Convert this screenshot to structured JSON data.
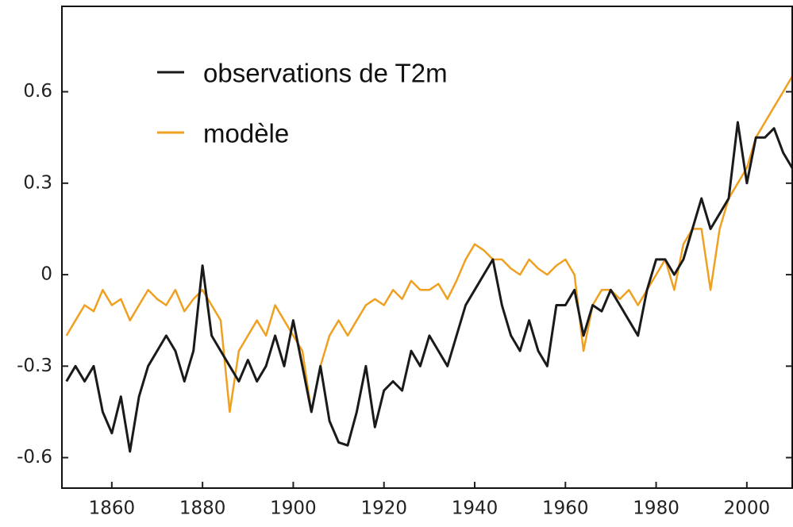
{
  "chart_data": {
    "type": "line",
    "x": [
      1850,
      1852,
      1854,
      1856,
      1858,
      1860,
      1862,
      1864,
      1866,
      1868,
      1870,
      1872,
      1874,
      1876,
      1878,
      1880,
      1882,
      1884,
      1886,
      1888,
      1890,
      1892,
      1894,
      1896,
      1898,
      1900,
      1902,
      1904,
      1906,
      1908,
      1910,
      1912,
      1914,
      1916,
      1918,
      1920,
      1922,
      1924,
      1926,
      1928,
      1930,
      1932,
      1934,
      1936,
      1938,
      1940,
      1942,
      1944,
      1946,
      1948,
      1950,
      1952,
      1954,
      1956,
      1958,
      1960,
      1962,
      1964,
      1966,
      1968,
      1970,
      1972,
      1974,
      1976,
      1978,
      1980,
      1982,
      1984,
      1986,
      1988,
      1990,
      1992,
      1994,
      1996,
      1998,
      2000,
      2002,
      2004,
      2006,
      2008,
      2010
    ],
    "series": [
      {
        "name": "observations de T2m",
        "color": "#1a1a1a",
        "values": [
          -0.35,
          -0.3,
          -0.35,
          -0.3,
          -0.45,
          -0.52,
          -0.4,
          -0.58,
          -0.4,
          -0.3,
          -0.25,
          -0.2,
          -0.25,
          -0.35,
          -0.25,
          0.03,
          -0.2,
          -0.25,
          -0.3,
          -0.35,
          -0.28,
          -0.35,
          -0.3,
          -0.2,
          -0.3,
          -0.15,
          -0.3,
          -0.45,
          -0.3,
          -0.48,
          -0.55,
          -0.56,
          -0.45,
          -0.3,
          -0.5,
          -0.38,
          -0.35,
          -0.38,
          -0.25,
          -0.3,
          -0.2,
          -0.25,
          -0.3,
          -0.2,
          -0.1,
          -0.05,
          0.0,
          0.05,
          -0.1,
          -0.2,
          -0.25,
          -0.15,
          -0.25,
          -0.3,
          -0.1,
          -0.1,
          -0.05,
          -0.2,
          -0.1,
          -0.12,
          -0.05,
          -0.1,
          -0.15,
          -0.2,
          -0.05,
          0.05,
          0.05,
          0.0,
          0.05,
          0.15,
          0.25,
          0.15,
          0.2,
          0.25,
          0.5,
          0.3,
          0.45,
          0.45,
          0.48,
          0.4,
          0.35
        ]
      },
      {
        "name": "modèle",
        "color": "#f0a020",
        "values": [
          -0.2,
          -0.15,
          -0.1,
          -0.12,
          -0.05,
          -0.1,
          -0.08,
          -0.15,
          -0.1,
          -0.05,
          -0.08,
          -0.1,
          -0.05,
          -0.12,
          -0.08,
          -0.05,
          -0.1,
          -0.15,
          -0.45,
          -0.25,
          -0.2,
          -0.15,
          -0.2,
          -0.1,
          -0.15,
          -0.2,
          -0.25,
          -0.45,
          -0.3,
          -0.2,
          -0.15,
          -0.2,
          -0.15,
          -0.1,
          -0.08,
          -0.1,
          -0.05,
          -0.08,
          -0.02,
          -0.05,
          -0.05,
          -0.03,
          -0.08,
          -0.02,
          0.05,
          0.1,
          0.08,
          0.05,
          0.05,
          0.02,
          0.0,
          0.05,
          0.02,
          0.0,
          0.03,
          0.05,
          0.0,
          -0.25,
          -0.1,
          -0.05,
          -0.05,
          -0.08,
          -0.05,
          -0.1,
          -0.05,
          0.0,
          0.05,
          -0.05,
          0.1,
          0.15,
          0.15,
          -0.05,
          0.15,
          0.25,
          0.3,
          0.35,
          0.45,
          0.5,
          0.55,
          0.6,
          0.65
        ]
      }
    ],
    "xlim": [
      1849,
      2010
    ],
    "xticks": [
      1860,
      1880,
      1900,
      1920,
      1940,
      1960,
      1980,
      2000
    ],
    "ylim": [
      -0.7,
      0.88
    ],
    "yticks": [
      -0.6,
      -0.3,
      0,
      0.3,
      0.6
    ]
  }
}
